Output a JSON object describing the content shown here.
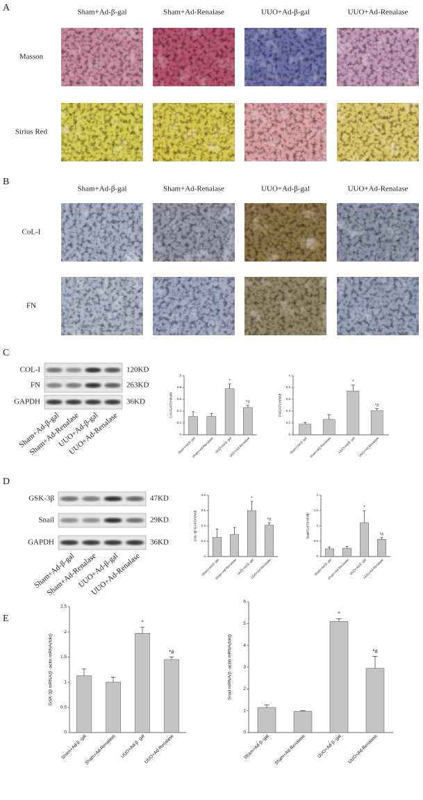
{
  "panel_labels": [
    "A",
    "B",
    "C",
    "D",
    "E"
  ],
  "groups": [
    "Sham+Ad-β-gal",
    "Sham+Ad-Renalase",
    "UUO+Ad-β-gal",
    "UUO+Ad-Renalase"
  ],
  "stains": [
    "Masson",
    "Sirius Red"
  ],
  "ihc": [
    "CoL-I",
    "FN"
  ],
  "blots": [
    {
      "rows": [
        {
          "name": "COL-I",
          "size": "120KD"
        },
        {
          "name": "FN",
          "size": "263KD"
        },
        {
          "name": "GAPDH",
          "size": "36KD"
        }
      ]
    },
    {
      "rows": [
        {
          "name": "GSK-3β",
          "size": "47KD"
        },
        {
          "name": "Snail",
          "size": "29KD"
        },
        {
          "name": "GAPDH",
          "size": "36KD"
        }
      ]
    }
  ],
  "chart_data": [
    {
      "type": "bar",
      "y_label": "Col-I/GAPDH(fold)",
      "categories": [
        "Sham+Ad-β -gal",
        "Sham+Ad-Renalase",
        "UUO+Ad-β -gal",
        "UUO+Ad-Renalase"
      ],
      "values": [
        0.31,
        0.31,
        0.78,
        0.46
      ],
      "errors": [
        0.08,
        0.05,
        0.08,
        0.04
      ],
      "annotations": [
        null,
        null,
        "*",
        "*#"
      ],
      "color": "#c4c4c4",
      "ylim": [
        0,
        1
      ],
      "yticks": [
        0,
        0.2,
        0.4,
        0.6,
        0.8,
        1
      ]
    },
    {
      "type": "bar",
      "y_label": "FN/GAPDH(fold)",
      "categories": [
        "Sham+Ad-β -gal",
        "Sham+Ad-Renalase",
        "UUO+Ad-β -gal",
        "UUO+Ad-Renalase"
      ],
      "values": [
        0.18,
        0.26,
        0.74,
        0.41
      ],
      "errors": [
        0.03,
        0.08,
        0.1,
        0.03
      ],
      "annotations": [
        null,
        null,
        "*",
        "*#"
      ],
      "color": "#c4c4c4",
      "ylim": [
        0,
        1
      ],
      "yticks": [
        0,
        0.2,
        0.4,
        0.6,
        0.8,
        1
      ]
    },
    {
      "type": "bar",
      "y_label": "GSK-3β /GAPDH(fold)",
      "categories": [
        "Sham+Ad-β -gal",
        "Sham+Ad-Renalase",
        "UUO+Ad-β -gal",
        "UUO+Ad-Renalase"
      ],
      "values": [
        0.25,
        0.29,
        0.6,
        0.41
      ],
      "errors": [
        0.11,
        0.09,
        0.12,
        0.03
      ],
      "annotations": [
        null,
        null,
        "*",
        "*#"
      ],
      "color": "#c4c4c4",
      "ylim": [
        0,
        0.8
      ],
      "yticks": [
        0,
        0.2,
        0.4,
        0.6,
        0.8
      ]
    },
    {
      "type": "bar",
      "y_label": "Snail/GAPDH(fold)",
      "categories": [
        "Sham+Ad-β -gal",
        "Sham+Ad-Renalase",
        "UUO+Ad-β -gal",
        "UUO+Ad-Renalase"
      ],
      "values": [
        0.25,
        0.27,
        1.1,
        0.56
      ],
      "errors": [
        0.06,
        0.06,
        0.4,
        0.06
      ],
      "annotations": [
        null,
        null,
        "*",
        "*#"
      ],
      "color": "#c4c4c4",
      "ylim": [
        0,
        2
      ],
      "yticks": [
        0,
        0.5,
        1,
        1.5,
        2
      ]
    },
    {
      "type": "bar",
      "y_label": "GSK-3β mRNA/β -actin mRNA(fold)",
      "categories": [
        "Sham+Ad-β -gal",
        "Sham+Ad-Renalase",
        "UUO+Ad-β -gal",
        "UUO+Ad-Renalase"
      ],
      "values": [
        1.13,
        1.0,
        1.97,
        1.45
      ],
      "errors": [
        0.13,
        0.1,
        0.12,
        0.05
      ],
      "annotations": [
        null,
        null,
        "*",
        "*#"
      ],
      "color": "#c4c4c4",
      "ylim": [
        0,
        2.5
      ],
      "yticks": [
        0,
        0.5,
        1,
        1.5,
        2,
        2.5
      ]
    },
    {
      "type": "bar",
      "y_label": "Snail mRNA/β -actin mRNA(fold)",
      "categories": [
        "Sham+Ad-β -gal",
        "Sham+Ad-Renalase",
        "UUO+Ad-β -gal",
        "UUO+Ad-Renalase"
      ],
      "values": [
        1.15,
        0.97,
        5.1,
        2.95
      ],
      "errors": [
        0.12,
        0.03,
        0.12,
        0.55
      ],
      "annotations": [
        null,
        null,
        "*",
        "*#"
      ],
      "color": "#c4c4c4",
      "ylim": [
        0,
        6
      ],
      "yticks": [
        0,
        1,
        2,
        3,
        4,
        5,
        6
      ]
    }
  ]
}
